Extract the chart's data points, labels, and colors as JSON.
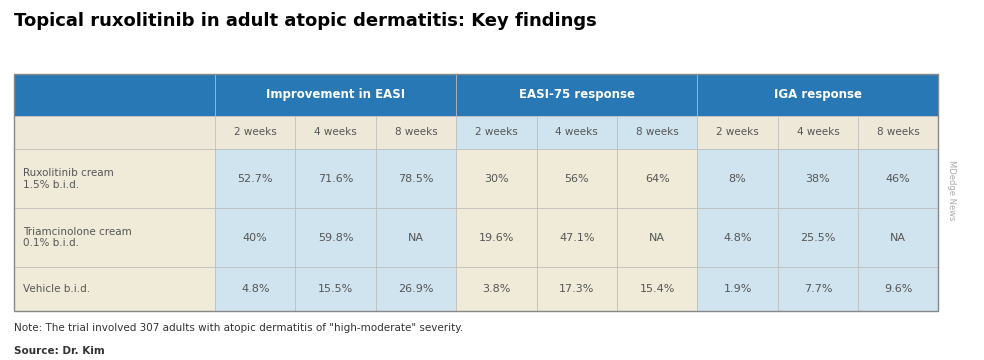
{
  "title": "Topical ruxolitinib in adult atopic dermatitis: Key findings",
  "note": "Note: The trial involved 307 adults with atopic dermatitis of \"high-moderate\" severity.",
  "source": "Source: Dr. Kim",
  "watermark": "MDedge News",
  "header_groups": [
    {
      "label": "Improvement in EASI"
    },
    {
      "label": "EASI-75 response"
    },
    {
      "label": "IGA response"
    }
  ],
  "subheaders": [
    "2 weeks",
    "4 weeks",
    "8 weeks",
    "2 weeks",
    "4 weeks",
    "8 weeks",
    "2 weeks",
    "4 weeks",
    "8 weeks"
  ],
  "rows": [
    {
      "label": "Ruxolitinib cream\n1.5% b.i.d.",
      "values": [
        "52.7%",
        "71.6%",
        "78.5%",
        "30%",
        "56%",
        "64%",
        "8%",
        "38%",
        "46%"
      ]
    },
    {
      "label": "Triamcinolone cream\n0.1% b.i.d.",
      "values": [
        "40%",
        "59.8%",
        "NA",
        "19.6%",
        "47.1%",
        "NA",
        "4.8%",
        "25.5%",
        "NA"
      ]
    },
    {
      "label": "Vehicle b.i.d.",
      "values": [
        "4.8%",
        "15.5%",
        "26.9%",
        "3.8%",
        "17.3%",
        "15.4%",
        "1.9%",
        "7.7%",
        "9.6%"
      ]
    }
  ],
  "header_bg": "#2878b5",
  "header_text_color": "#ffffff",
  "subheader_bg_cream": "#ede8d8",
  "subheader_bg_blue": "#d0e4f0",
  "row_label_bg": "#f0ebd8",
  "cell_bg_blue": "#d0e4f0",
  "cell_bg_cream": "#f0ebd8",
  "border_color": "#bbbbbb",
  "title_color": "#000000",
  "text_color": "#555555",
  "note_text_color": "#333333"
}
